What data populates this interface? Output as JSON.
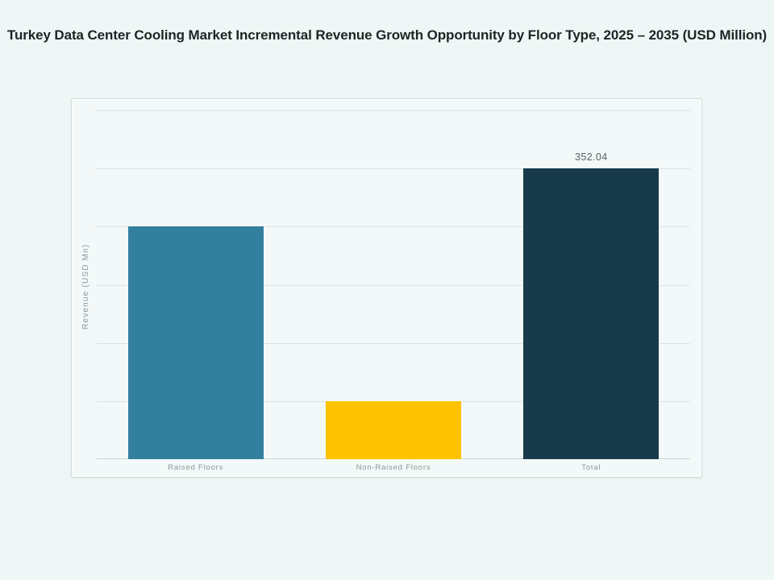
{
  "page": {
    "title": "Turkey Data Center Cooling Market Incremental Revenue Growth Opportunity by Floor Type, 2025 – 2035 (USD Million)"
  },
  "chart_data": {
    "type": "bar",
    "title": "Turkey Data Center Cooling Market Incremental Revenue Growth Opportunity by Floor Type, 2025 – 2035 (USD Million)",
    "categories": [
      "Raised Floors",
      "Non-Raised Floors",
      "Total"
    ],
    "values": [
      281.63,
      70.41,
      352.04
    ],
    "data_labels": [
      "",
      "",
      "352.04"
    ],
    "bar_colors": [
      "#337f9e",
      "#fdc300",
      "#173b4a"
    ],
    "xlabel": "",
    "ylabel": "Revenue (USD Mn)",
    "ylim": [
      0,
      422.45
    ],
    "gridline_step": 70.41,
    "grid": true,
    "legend_position": "none",
    "y_tick_labels_visible": false
  },
  "theme": {
    "page_bg": "#eef7f5",
    "panel_bg": "#f3f9f8",
    "panel_border": "#d3dddc",
    "grid_color": "#dce4e3",
    "axis_line_color": "#c9d4d3",
    "title_color": "#1e2324",
    "axis_label_color": "#8d9697",
    "value_label_color": "#5a6263"
  }
}
